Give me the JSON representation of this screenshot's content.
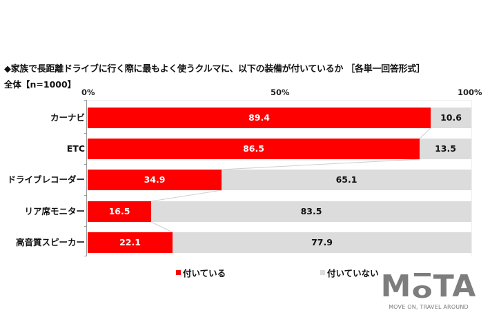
{
  "header": {
    "title": "◆家族で長距離ドライブに行く際に最もよく使うクルマに、以下の装備が付いているか ［各単一回答形式］",
    "subtitle": "全体【n=1000】"
  },
  "colors": {
    "yes": "#fe0000",
    "no": "#dcdcdc",
    "logo": "#7d7d7d"
  },
  "chart_data": {
    "type": "bar",
    "orientation": "horizontal",
    "stacked": true,
    "percent_stacked": true,
    "title": "◆家族で長距離ドライブに行く際に最もよく使うクルマに、以下の装備が付いているか ［各単一回答形式］",
    "subtitle": "全体【n=1000】",
    "categories": [
      "カーナビ",
      "ETC",
      "ドライブレコーダー",
      "リア席モニター",
      "高音質スピーカー"
    ],
    "series": [
      {
        "name": "付いている",
        "color": "#fe0000",
        "values": [
          89.4,
          86.5,
          34.9,
          16.5,
          22.1
        ]
      },
      {
        "name": "付いていない",
        "color": "#dcdcdc",
        "values": [
          10.6,
          13.5,
          65.1,
          83.5,
          77.9
        ]
      }
    ],
    "xlabel": "",
    "ylabel": "",
    "xticks": [
      "0%",
      "50%",
      "100%"
    ],
    "xlim": [
      0,
      100
    ],
    "grid": false,
    "series_lines": true,
    "legend_position": "bottom"
  },
  "axis": {
    "ticks": [
      "0%",
      "50%",
      "100%"
    ]
  },
  "legend": {
    "items": [
      {
        "label": "付いている"
      },
      {
        "label": "付いていない"
      }
    ]
  },
  "logo": {
    "wordmark_left": "M",
    "wordmark_o": "o",
    "wordmark_right": "TA",
    "tagline": "MOVE ON, TRAVEL AROUND"
  }
}
